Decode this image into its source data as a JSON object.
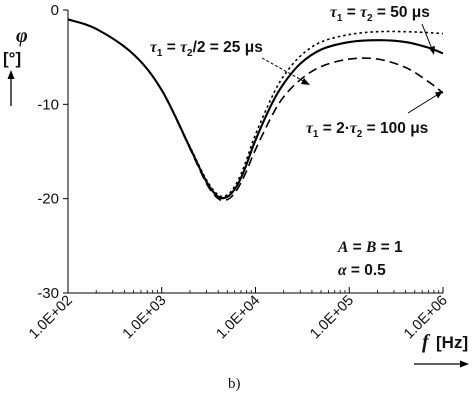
{
  "chart_data": {
    "type": "line",
    "x_scale": "log",
    "xlim": [
      100,
      1000000
    ],
    "ylim": [
      -30,
      0
    ],
    "x_ticks": [
      "1.0E+02",
      "1.0E+03",
      "1.0E+04",
      "1.0E+05",
      "1.0E+06"
    ],
    "y_ticks": [
      "0",
      "-10",
      "-20",
      "-30"
    ],
    "ylabel": "φ",
    "ylabel_unit": "[°]",
    "xlabel": "f",
    "xlabel_unit": "[Hz]",
    "grid": false,
    "series": [
      {
        "line_style": "dotted",
        "x": [
          100,
          200,
          500,
          1000,
          2000,
          3000,
          4000,
          5000,
          6000,
          7000,
          8000,
          10000,
          15000,
          20000,
          30000,
          50000,
          100000,
          200000,
          400000,
          700000,
          1000000
        ],
        "y": [
          -1.0,
          -2.0,
          -4.7,
          -8.5,
          -14.5,
          -18.0,
          -19.6,
          -19.6,
          -18.7,
          -17.4,
          -15.9,
          -13.2,
          -9.2,
          -7.0,
          -4.9,
          -3.4,
          -2.6,
          -2.3,
          -2.3,
          -2.4,
          -2.5
        ]
      },
      {
        "line_style": "solid",
        "x": [
          100,
          200,
          500,
          1000,
          2000,
          3000,
          4000,
          5000,
          6000,
          7000,
          8000,
          10000,
          15000,
          20000,
          30000,
          50000,
          100000,
          200000,
          400000,
          700000,
          1000000
        ],
        "y": [
          -1.0,
          -2.0,
          -4.7,
          -8.5,
          -14.6,
          -18.2,
          -19.8,
          -19.8,
          -19.0,
          -17.8,
          -16.4,
          -13.8,
          -9.9,
          -7.8,
          -5.7,
          -4.2,
          -3.4,
          -3.2,
          -3.4,
          -4.0,
          -4.6
        ]
      },
      {
        "line_style": "dashed",
        "x": [
          100,
          200,
          500,
          1000,
          2000,
          3000,
          4000,
          5000,
          6000,
          7000,
          8000,
          10000,
          15000,
          20000,
          30000,
          50000,
          100000,
          200000,
          400000,
          700000,
          1000000
        ],
        "y": [
          -1.0,
          -2.0,
          -4.7,
          -8.5,
          -14.7,
          -18.4,
          -20.0,
          -20.1,
          -19.4,
          -18.3,
          -17.1,
          -14.8,
          -11.2,
          -9.2,
          -7.4,
          -6.0,
          -5.2,
          -5.2,
          -6.1,
          -7.6,
          -8.8
        ]
      }
    ],
    "annotations": {
      "a1": {
        "tau": "τ",
        "sub1": "1",
        "eq": " = ",
        "sub2": "2",
        "rest": "/2 = 25 μs"
      },
      "a2": {
        "tau": "τ",
        "sub1": "1",
        "eq": " = ",
        "sub2": "2",
        "rest": " = 50 μs"
      },
      "a3": {
        "tau": "τ",
        "sub1": "1",
        "eq": " = 2·",
        "sub2": "2",
        "rest": " = 100 μs"
      },
      "params_line1": {
        "var_a": "A",
        "mid": " = ",
        "var_b": "B",
        "end": " = 1"
      },
      "params_line2": {
        "var": "α",
        "end": " = 0.5"
      }
    },
    "caption": "b)",
    "colors": {
      "line": "#000000",
      "axis": "#000000"
    }
  }
}
